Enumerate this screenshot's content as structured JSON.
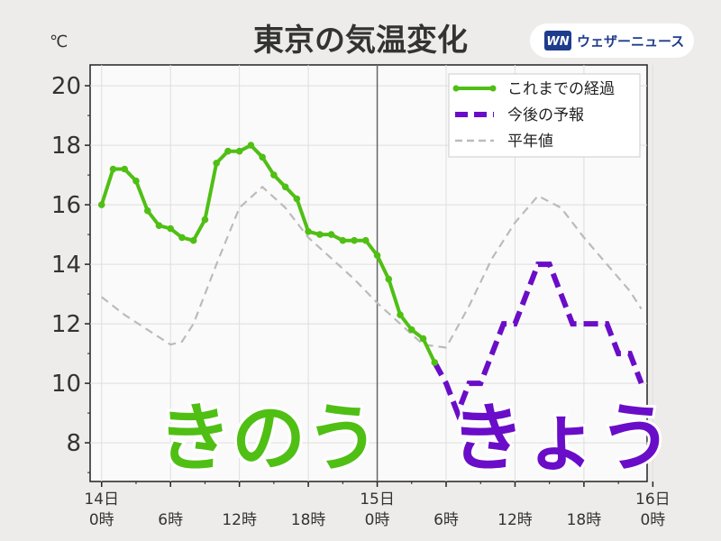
{
  "header": {
    "title": "東京の気温変化",
    "unit": "℃",
    "brand": {
      "logo_text": "WN",
      "name": "ウェザーニュース",
      "color": "#1f3c8c"
    }
  },
  "labels": {
    "yesterday": "きのう",
    "today": "きょう",
    "yesterday_color": "#4fbf14",
    "today_color": "#6a0dc8"
  },
  "chart_data": {
    "type": "line",
    "xlabel": "",
    "ylabel": "℃",
    "ylim": [
      6.7,
      20.7
    ],
    "xlim": [
      -1,
      47.5
    ],
    "y_ticks": [
      8,
      10,
      12,
      14,
      16,
      18,
      20
    ],
    "x_ticks": [
      {
        "x": 0,
        "label1": "14日",
        "label2": "0時"
      },
      {
        "x": 6,
        "label1": "",
        "label2": "6時"
      },
      {
        "x": 12,
        "label1": "",
        "label2": "12時"
      },
      {
        "x": 18,
        "label1": "",
        "label2": "18時"
      },
      {
        "x": 24,
        "label1": "15日",
        "label2": "0時"
      },
      {
        "x": 30,
        "label1": "",
        "label2": "6時"
      },
      {
        "x": 36,
        "label1": "",
        "label2": "12時"
      },
      {
        "x": 42,
        "label1": "",
        "label2": "18時"
      },
      {
        "x": 48,
        "label1": "16日",
        "label2": "0時"
      }
    ],
    "now_line_x": 24,
    "grid": true,
    "legend_position": "top-right",
    "series": [
      {
        "name": "これまでの経過",
        "color": "#4fbf14",
        "style": "solid-markers",
        "x": [
          0,
          1,
          2,
          3,
          4,
          5,
          6,
          7,
          8,
          9,
          10,
          11,
          12,
          13,
          14,
          15,
          16,
          17,
          18,
          19,
          20,
          21,
          22,
          23,
          24,
          25,
          26,
          27,
          28,
          29
        ],
        "y": [
          16.0,
          17.2,
          17.2,
          16.8,
          15.8,
          15.3,
          15.2,
          14.9,
          14.8,
          15.5,
          17.4,
          17.8,
          17.8,
          18.0,
          17.6,
          17.0,
          16.6,
          16.2,
          15.1,
          15.0,
          15.0,
          14.8,
          14.8,
          14.8,
          14.3,
          13.5,
          12.3,
          11.8,
          11.5,
          10.7
        ]
      },
      {
        "name": "今後の予報",
        "color": "#6a0dc8",
        "style": "dashed-thick",
        "x": [
          29,
          30,
          31,
          32,
          33,
          34,
          35,
          36,
          37,
          38,
          39,
          40,
          41,
          42,
          43,
          44,
          45,
          46,
          47
        ],
        "y": [
          10.7,
          10.0,
          9.0,
          10.0,
          10.0,
          11.0,
          12.0,
          12.0,
          13.0,
          14.0,
          14.0,
          13.0,
          12.0,
          12.0,
          12.0,
          12.0,
          11.0,
          11.0,
          10.0
        ]
      },
      {
        "name": "平年値",
        "color": "#bbbbbb",
        "style": "dashed-thin",
        "x": [
          0,
          2,
          4,
          6,
          7,
          8,
          10,
          12,
          14,
          16,
          18,
          20,
          22,
          24,
          26,
          28,
          30,
          32,
          34,
          36,
          38,
          40,
          42,
          44,
          46,
          47
        ],
        "y": [
          12.9,
          12.3,
          11.8,
          11.3,
          11.4,
          12.0,
          14.0,
          15.9,
          16.6,
          15.9,
          14.9,
          14.2,
          13.5,
          12.7,
          12.0,
          11.3,
          11.2,
          12.6,
          14.2,
          15.4,
          16.3,
          15.9,
          14.9,
          14.0,
          13.1,
          12.5
        ]
      }
    ]
  }
}
